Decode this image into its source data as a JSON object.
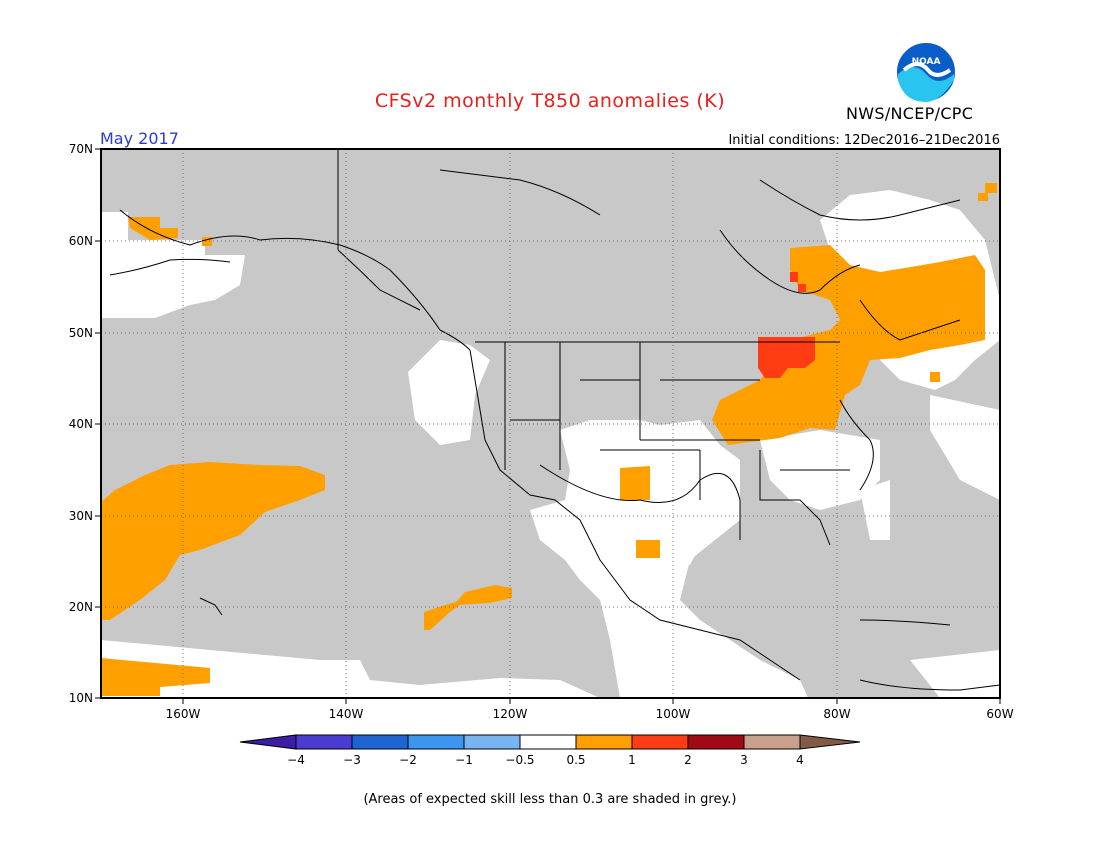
{
  "header": {
    "title": "CFSv2 monthly T850 anomalies (K)",
    "agency": "NWS/NCEP/CPC",
    "valid_month": "May 2017",
    "initial_conditions": "Initial conditions: 12Dec2016–21Dec2016"
  },
  "logo": {
    "text": "NOAA"
  },
  "map": {
    "lon_labels": [
      "160W",
      "140W",
      "120W",
      "100W",
      "80W",
      "60W"
    ],
    "lat_labels": [
      "70N",
      "60N",
      "50N",
      "40N",
      "30N",
      "20N",
      "10N"
    ]
  },
  "colorbar": {
    "labels": [
      "−4",
      "−3",
      "−2",
      "−1",
      "−0.5",
      "0.5",
      "1",
      "2",
      "3",
      "4"
    ],
    "colors": [
      "#3c1ea6",
      "#4a3cd0",
      "#1e64d2",
      "#3c96f0",
      "#78b4f0",
      "#ffffff",
      "#ffa000",
      "#ff3c14",
      "#a00a14",
      "#c8a08c",
      "#825a46"
    ]
  },
  "footnote": "(Areas of expected skill less than 0.3 are shaded in grey.)",
  "colors": {
    "grey_low_skill": "#c8c8c8",
    "anomaly_0_5_to_1": "#ffa000",
    "anomaly_1_to_2": "#ff3c14",
    "title_red": "#e8201c",
    "month_blue": "#2a3bd6"
  }
}
